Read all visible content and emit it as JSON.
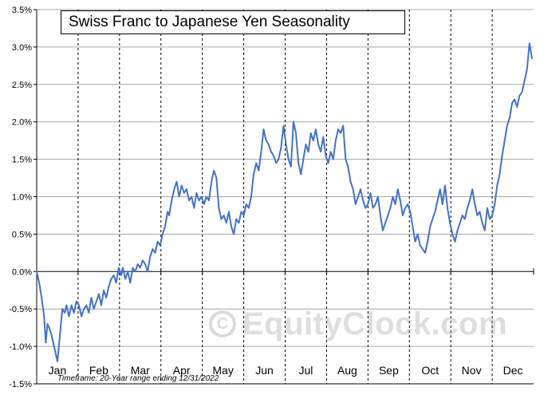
{
  "title": "Swiss Franc to Japanese Yen Seasonality",
  "footnote": "Timeframe: 20-Year range ending 12/31/2022",
  "watermark": {
    "text": "EquityClock.com",
    "icon": "copyright-icon"
  },
  "chart_data": {
    "type": "line",
    "title": "Swiss Franc to Japanese Yen Seasonality",
    "xlabel": "",
    "ylabel": "",
    "categories": [
      "Jan",
      "Feb",
      "Mar",
      "Apr",
      "May",
      "Jun",
      "Jul",
      "Aug",
      "Sep",
      "Oct",
      "Nov",
      "Dec"
    ],
    "ylim": [
      -1.5,
      3.5
    ],
    "yticks": [
      -1.5,
      -1.0,
      -0.5,
      0.0,
      0.5,
      1.0,
      1.5,
      2.0,
      2.5,
      3.0,
      3.5
    ],
    "ytick_labels": [
      "-1.5%",
      "-1.0%",
      "-0.5%",
      "0.0%",
      "0.5%",
      "1.0%",
      "1.5%",
      "2.0%",
      "2.5%",
      "3.0%",
      "3.5%"
    ],
    "grid": true,
    "line_color": "#4472C4",
    "series": [
      {
        "x": [
          0,
          0.06,
          0.12,
          0.18,
          0.22,
          0.26,
          0.3,
          0.36,
          0.42,
          0.5,
          0.56,
          0.62,
          0.68,
          0.72,
          0.78,
          0.84,
          0.9,
          0.96,
          1.02,
          1.08,
          1.14,
          1.2,
          1.26,
          1.32,
          1.38,
          1.44,
          1.5,
          1.56,
          1.62,
          1.68,
          1.74,
          1.8,
          1.86,
          1.92,
          1.98,
          2.04,
          2.08,
          2.14,
          2.2,
          2.26,
          2.32,
          2.38,
          2.44,
          2.5,
          2.56,
          2.62,
          2.68,
          2.74,
          2.8,
          2.86,
          2.92,
          2.98,
          3.04,
          3.1,
          3.16,
          3.2,
          3.26,
          3.32,
          3.38,
          3.44,
          3.5,
          3.56,
          3.62,
          3.68,
          3.74,
          3.8,
          3.86,
          3.92,
          3.98,
          4.04,
          4.1,
          4.16,
          4.22,
          4.28,
          4.34,
          4.4,
          4.46,
          4.52,
          4.58,
          4.64,
          4.7,
          4.76,
          4.82,
          4.88,
          4.94,
          5.0,
          5.06,
          5.12,
          5.18,
          5.24,
          5.3,
          5.36,
          5.42,
          5.48,
          5.54,
          5.6,
          5.66,
          5.72,
          5.78,
          5.84,
          5.9,
          5.96,
          6.02,
          6.08,
          6.14,
          6.2,
          6.26,
          6.32,
          6.38,
          6.44,
          6.5,
          6.56,
          6.62,
          6.68,
          6.74,
          6.8,
          6.86,
          6.92,
          6.98,
          7.04,
          7.1,
          7.16,
          7.22,
          7.28,
          7.34,
          7.4,
          7.46,
          7.52,
          7.58,
          7.64,
          7.7,
          7.76,
          7.82,
          7.88,
          7.94,
          8.0,
          8.06,
          8.12,
          8.18,
          8.24,
          8.3,
          8.36,
          8.42,
          8.48,
          8.54,
          8.6,
          8.66,
          8.72,
          8.78,
          8.84,
          8.9,
          8.96,
          9.02,
          9.08,
          9.14,
          9.2,
          9.26,
          9.32,
          9.38,
          9.44,
          9.5,
          9.56,
          9.62,
          9.68,
          9.74,
          9.8,
          9.86,
          9.92,
          9.98,
          10.04,
          10.1,
          10.16,
          10.22,
          10.28,
          10.34,
          10.4,
          10.46,
          10.52,
          10.58,
          10.64,
          10.7,
          10.76,
          10.82,
          10.88,
          10.94,
          11.0,
          11.06,
          11.12,
          11.18,
          11.24,
          11.3,
          11.36,
          11.42,
          11.48,
          11.54,
          11.6,
          11.66,
          11.72,
          11.78,
          11.84,
          11.9,
          11.96
        ],
        "values": [
          0.0,
          -0.15,
          -0.35,
          -0.6,
          -0.95,
          -0.7,
          -0.75,
          -0.85,
          -1.0,
          -1.2,
          -0.85,
          -0.5,
          -0.55,
          -0.45,
          -0.6,
          -0.45,
          -0.55,
          -0.4,
          -0.45,
          -0.6,
          -0.5,
          -0.45,
          -0.55,
          -0.35,
          -0.5,
          -0.4,
          -0.3,
          -0.45,
          -0.25,
          -0.35,
          -0.2,
          -0.1,
          -0.05,
          -0.15,
          0.05,
          -0.05,
          0.05,
          -0.1,
          0.0,
          -0.15,
          0.05,
          0.0,
          0.1,
          0.05,
          0.15,
          0.1,
          0.0,
          0.2,
          0.3,
          0.25,
          0.4,
          0.35,
          0.5,
          0.6,
          0.8,
          0.75,
          0.95,
          1.1,
          1.2,
          1.0,
          1.15,
          1.05,
          1.1,
          0.95,
          1.0,
          0.85,
          1.05,
          0.95,
          1.0,
          0.9,
          1.0,
          0.95,
          1.2,
          1.35,
          1.25,
          0.85,
          0.7,
          0.75,
          0.65,
          0.8,
          0.6,
          0.5,
          0.7,
          0.65,
          0.8,
          0.75,
          0.9,
          0.85,
          1.0,
          1.3,
          1.45,
          1.35,
          1.6,
          1.9,
          1.75,
          1.7,
          1.6,
          1.55,
          1.45,
          1.5,
          1.65,
          1.95,
          1.7,
          1.5,
          1.4,
          2.0,
          1.85,
          1.45,
          1.3,
          1.5,
          1.7,
          1.6,
          1.85,
          1.75,
          1.9,
          1.7,
          1.6,
          1.8,
          1.55,
          1.45,
          1.6,
          1.5,
          1.75,
          1.9,
          1.85,
          1.95,
          1.5,
          1.4,
          1.2,
          1.1,
          0.9,
          1.0,
          1.1,
          0.95,
          0.85,
          0.9,
          1.05,
          0.85,
          0.9,
          1.0,
          0.75,
          0.55,
          0.65,
          0.75,
          0.85,
          1.0,
          0.9,
          1.1,
          0.95,
          0.75,
          0.85,
          0.9,
          0.8,
          0.6,
          0.4,
          0.5,
          0.35,
          0.3,
          0.25,
          0.4,
          0.6,
          0.7,
          0.8,
          0.95,
          1.1,
          0.9,
          1.15,
          0.85,
          0.65,
          0.5,
          0.4,
          0.55,
          0.65,
          0.75,
          0.7,
          0.85,
          0.95,
          1.1,
          0.9,
          0.75,
          0.8,
          0.65,
          0.55,
          0.85,
          0.7,
          0.75,
          0.9,
          1.15,
          1.3,
          1.55,
          1.75,
          1.95,
          2.05,
          2.25,
          2.3,
          2.2,
          2.35,
          2.4,
          2.55,
          2.7,
          3.05,
          2.85
        ]
      }
    ]
  }
}
